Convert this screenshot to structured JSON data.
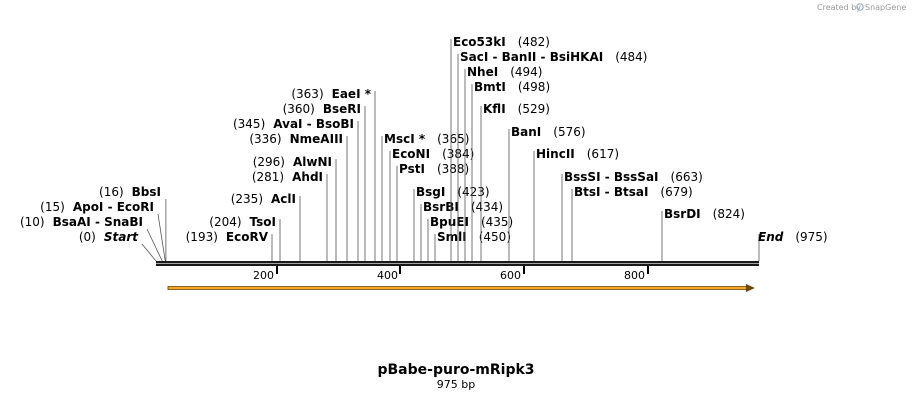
{
  "branding": {
    "created_by": "Created by",
    "product": "SnapGene"
  },
  "plasmid": {
    "name": "pBabe-puro-mRipk3",
    "size": "975 bp",
    "length": 975
  },
  "scale_ticks": [
    "200",
    "400",
    "600",
    "800"
  ],
  "colors": {
    "feature_arrow": "#f5a623",
    "feature_stroke": "#6b4a10",
    "backbone": "#1a1a1a"
  },
  "sites": [
    {
      "label": "Start",
      "pos": "(0)",
      "bp": 0,
      "italic": true
    },
    {
      "label": "BsaAI",
      "label2": "SnaBI",
      "pos": "(10)",
      "bp": 10
    },
    {
      "label": "ApoI",
      "label2": "EcoRI",
      "pos": "(15)",
      "bp": 15
    },
    {
      "label": "BbsI",
      "pos": "(16)",
      "bp": 16
    },
    {
      "label": "EcoRV",
      "pos": "(193)",
      "bp": 193
    },
    {
      "label": "TsoI",
      "pos": "(204)",
      "bp": 204
    },
    {
      "label": "AclI",
      "pos": "(235)",
      "bp": 235
    },
    {
      "label": "AhdI",
      "pos": "(281)",
      "bp": 281
    },
    {
      "label": "AlwNI",
      "pos": "(296)",
      "bp": 296
    },
    {
      "label": "NmeAIII",
      "pos": "(336)",
      "bp": 336
    },
    {
      "label": "AvaI",
      "label2": "BsoBI",
      "pos": "(345)",
      "bp": 345
    },
    {
      "label": "BseRI",
      "pos": "(360)",
      "bp": 360
    },
    {
      "label": "EaeI *",
      "pos": "(363)",
      "bp": 363
    },
    {
      "label": "MscI *",
      "pos": "(365)",
      "bp": 365
    },
    {
      "label": "EcoNI",
      "pos": "(384)",
      "bp": 384
    },
    {
      "label": "PstI",
      "pos": "(388)",
      "bp": 388
    },
    {
      "label": "BsgI",
      "pos": "(423)",
      "bp": 423
    },
    {
      "label": "BsrBI",
      "pos": "(434)",
      "bp": 434
    },
    {
      "label": "BpuEI",
      "pos": "(435)",
      "bp": 435
    },
    {
      "label": "SmlI",
      "pos": "(450)",
      "bp": 450
    },
    {
      "label": "Eco53kI",
      "pos": "(482)",
      "bp": 482
    },
    {
      "label": "SacI",
      "label2": "BanII",
      "label3": "BsiHKAI",
      "pos": "(484)",
      "bp": 484
    },
    {
      "label": "NheI",
      "pos": "(494)",
      "bp": 494
    },
    {
      "label": "BmtI",
      "pos": "(498)",
      "bp": 498
    },
    {
      "label": "KflI",
      "pos": "(529)",
      "bp": 529
    },
    {
      "label": "BanI",
      "pos": "(576)",
      "bp": 576
    },
    {
      "label": "HincII",
      "pos": "(617)",
      "bp": 617
    },
    {
      "label": "BssSI",
      "label2": "BssSaI",
      "pos": "(663)",
      "bp": 663
    },
    {
      "label": "BtsI",
      "label2": "BtsaI",
      "pos": "(679)",
      "bp": 679
    },
    {
      "label": "BsrDI",
      "pos": "(824)",
      "bp": 824
    },
    {
      "label": "End",
      "pos": "(975)",
      "bp": 975,
      "italic": true
    }
  ]
}
